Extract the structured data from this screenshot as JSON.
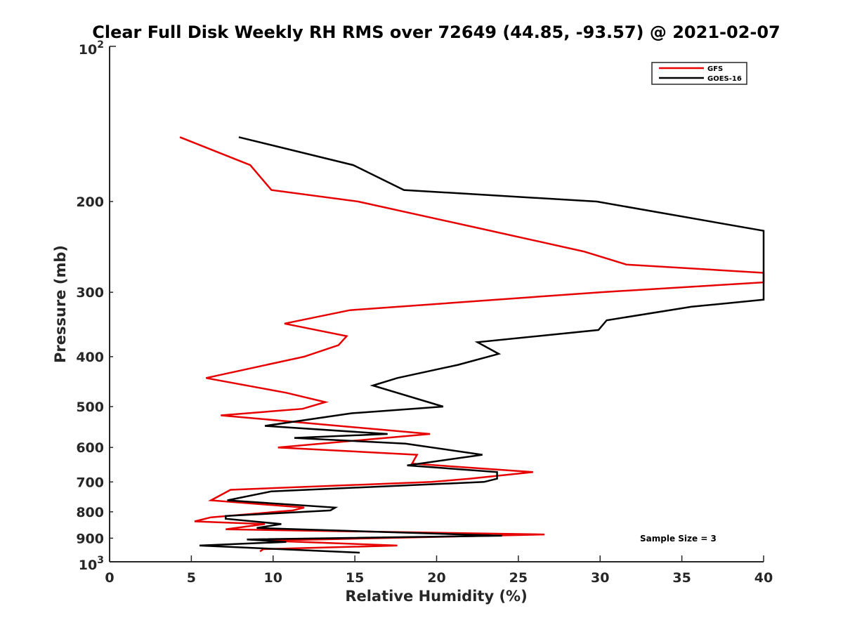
{
  "chart_data": {
    "type": "line",
    "title": "Clear Full Disk Weekly RH RMS over 72649 (44.85, -93.57) @ 2021-02-07",
    "xlabel": "Relative Humidity (%)",
    "ylabel": "Pressure (mb)",
    "xlim": [
      0,
      40
    ],
    "ylim": [
      100,
      1000
    ],
    "y_scale": "log",
    "y_reversed": true,
    "x_ticks": [
      0,
      5,
      10,
      15,
      20,
      25,
      30,
      35,
      40
    ],
    "x_tick_labels": [
      "0",
      "5",
      "10",
      "15",
      "20",
      "25",
      "30",
      "35",
      "40"
    ],
    "y_ticks": [
      200,
      300,
      400,
      500,
      600,
      700,
      800,
      900
    ],
    "y_tick_labels": [
      "200",
      "300",
      "400",
      "500",
      "600",
      "700",
      "800",
      "900"
    ],
    "y_tick_top": {
      "base": "10",
      "exp": "2"
    },
    "y_tick_bottom": {
      "base": "10",
      "exp": "3"
    },
    "legend_position": "top-right",
    "grid": false,
    "annotation": "Sample Size = 3",
    "series": [
      {
        "name": "GFS",
        "color": "#e60000",
        "points": [
          [
            4.3,
            150
          ],
          [
            8.6,
            170
          ],
          [
            9.9,
            190
          ],
          [
            15.2,
            200
          ],
          [
            22.5,
            225
          ],
          [
            29.0,
            250
          ],
          [
            31.6,
            265
          ],
          [
            40.0,
            275
          ],
          [
            40.0,
            287
          ],
          [
            30.0,
            300
          ],
          [
            14.7,
            325
          ],
          [
            10.7,
            345
          ],
          [
            14.5,
            365
          ],
          [
            14.0,
            380
          ],
          [
            11.9,
            400
          ],
          [
            5.9,
            440
          ],
          [
            10.8,
            470
          ],
          [
            13.2,
            490
          ],
          [
            11.8,
            505
          ],
          [
            6.8,
            520
          ],
          [
            19.6,
            565
          ],
          [
            10.3,
            600
          ],
          [
            18.8,
            620
          ],
          [
            18.5,
            645
          ],
          [
            25.9,
            670
          ],
          [
            22.0,
            690
          ],
          [
            19.7,
            700
          ],
          [
            7.4,
            725
          ],
          [
            6.2,
            760
          ],
          [
            11.9,
            785
          ],
          [
            11.2,
            795
          ],
          [
            6.2,
            820
          ],
          [
            5.2,
            835
          ],
          [
            9.5,
            845
          ],
          [
            7.1,
            865
          ],
          [
            26.6,
            885
          ],
          [
            9.6,
            910
          ],
          [
            17.6,
            930
          ],
          [
            9.4,
            945
          ],
          [
            9.2,
            955
          ]
        ]
      },
      {
        "name": "GOES-16",
        "color": "#000000",
        "points": [
          [
            7.9,
            150
          ],
          [
            14.9,
            170
          ],
          [
            18.0,
            190
          ],
          [
            29.8,
            200
          ],
          [
            40.0,
            228
          ],
          [
            40.0,
            310
          ],
          [
            35.6,
            320
          ],
          [
            30.4,
            340
          ],
          [
            29.9,
            355
          ],
          [
            22.5,
            375
          ],
          [
            23.8,
            395
          ],
          [
            21.3,
            415
          ],
          [
            17.6,
            440
          ],
          [
            16.1,
            455
          ],
          [
            20.4,
            500
          ],
          [
            14.8,
            515
          ],
          [
            9.5,
            545
          ],
          [
            17.0,
            565
          ],
          [
            11.3,
            575
          ],
          [
            18.1,
            590
          ],
          [
            22.8,
            620
          ],
          [
            18.2,
            650
          ],
          [
            23.7,
            670
          ],
          [
            23.7,
            690
          ],
          [
            22.9,
            700
          ],
          [
            9.9,
            730
          ],
          [
            7.2,
            760
          ],
          [
            13.8,
            785
          ],
          [
            13.5,
            795
          ],
          [
            7.1,
            815
          ],
          [
            7.1,
            825
          ],
          [
            10.5,
            845
          ],
          [
            9.0,
            860
          ],
          [
            24.0,
            890
          ],
          [
            8.4,
            905
          ],
          [
            10.8,
            915
          ],
          [
            5.5,
            930
          ],
          [
            15.3,
            960
          ]
        ]
      }
    ]
  }
}
